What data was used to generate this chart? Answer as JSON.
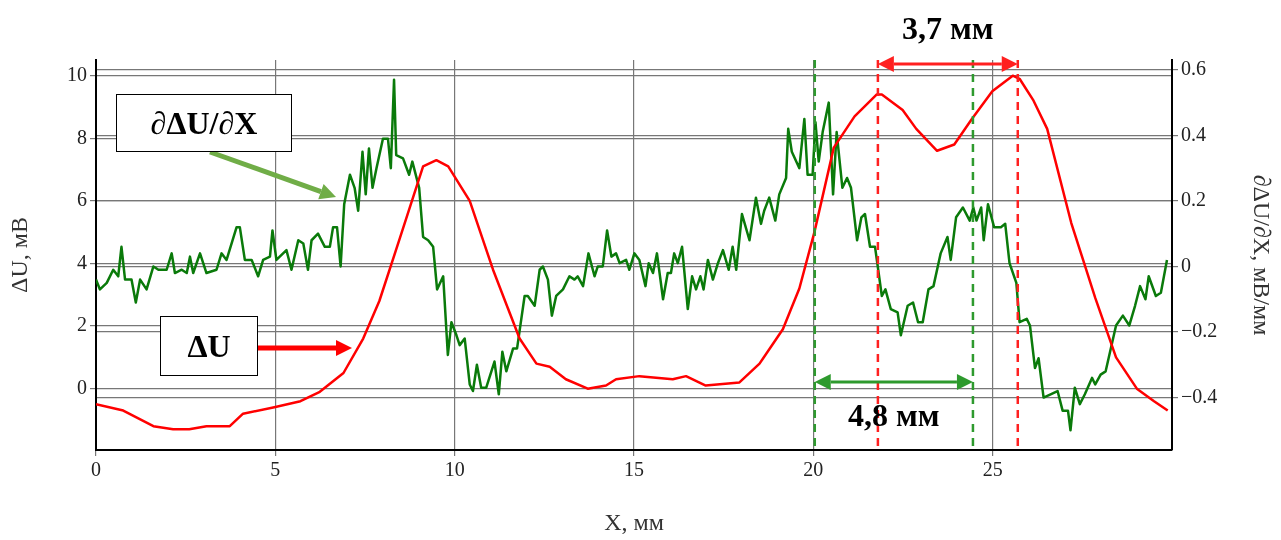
{
  "chart_data": {
    "type": "line",
    "xlabel": "X, мм",
    "ylabel": "ΔU, мВ",
    "y2label": "∂ΔU/∂X, мВ/мм",
    "xlim": [
      0,
      30
    ],
    "xticks": [
      0,
      5,
      10,
      15,
      20,
      25
    ],
    "ylim": [
      -1.96,
      10.5
    ],
    "yticks": [
      0,
      2,
      4,
      6,
      8,
      10
    ],
    "y2lim": [
      -0.56,
      0.63
    ],
    "y2ticks": [
      {
        "value": -0.4,
        "label": "−0.4"
      },
      {
        "value": -0.2,
        "label": "−0.2"
      },
      0,
      0.2,
      0.4,
      0.6
    ],
    "grid": true,
    "series": [
      {
        "name": "ΔU",
        "color": "#ff0000",
        "axis": "y",
        "x": [
          0,
          0.76,
          1.6,
          2.15,
          2.6,
          3.08,
          3.73,
          4.1,
          4.94,
          5.7,
          6.24,
          6.9,
          7.45,
          7.9,
          8.47,
          9.12,
          9.49,
          9.82,
          10.42,
          11.07,
          11.81,
          12.28,
          12.65,
          13.1,
          13.71,
          14.22,
          14.5,
          15.15,
          16.08,
          16.45,
          17.0,
          17.94,
          18.5,
          19.15,
          19.61,
          20.03,
          20.57,
          21.15,
          21.77,
          21.91,
          22.49,
          22.87,
          23.45,
          23.93,
          24.41,
          24.99,
          25.56,
          25.75,
          26.14,
          26.52,
          27.19,
          27.86,
          28.44,
          29.02,
          29.5,
          29.88
        ],
        "values": [
          -0.5,
          -0.7,
          -1.2,
          -1.3,
          -1.3,
          -1.2,
          -1.2,
          -0.8,
          -0.6,
          -0.4,
          -0.1,
          0.5,
          1.6,
          2.8,
          4.8,
          7.1,
          7.3,
          7.1,
          6.0,
          3.8,
          1.6,
          0.8,
          0.7,
          0.3,
          0.0,
          0.1,
          0.3,
          0.4,
          0.3,
          0.4,
          0.1,
          0.2,
          0.8,
          1.9,
          3.2,
          5.0,
          7.7,
          8.7,
          9.4,
          9.4,
          8.9,
          8.3,
          7.6,
          7.8,
          8.6,
          9.5,
          10.0,
          9.9,
          9.2,
          8.3,
          5.3,
          2.9,
          1.0,
          0.0,
          -0.4,
          -0.7
        ]
      },
      {
        "name": "∂ΔU/∂X",
        "color": "#0a7a0a",
        "axis": "y2",
        "x": [
          0,
          0.11,
          0.3,
          0.48,
          0.62,
          0.71,
          0.81,
          0.99,
          1.11,
          1.23,
          1.41,
          1.6,
          1.74,
          1.97,
          2.11,
          2.2,
          2.39,
          2.53,
          2.62,
          2.71,
          2.9,
          3.08,
          3.36,
          3.5,
          3.64,
          3.92,
          4.01,
          4.15,
          4.34,
          4.52,
          4.66,
          4.85,
          4.92,
          5.03,
          5.31,
          5.45,
          5.64,
          5.78,
          5.91,
          6.01,
          6.19,
          6.38,
          6.52,
          6.61,
          6.72,
          6.82,
          6.92,
          7.08,
          7.21,
          7.31,
          7.43,
          7.52,
          7.61,
          7.71,
          7.82,
          8.0,
          8.14,
          8.22,
          8.31,
          8.37,
          8.56,
          8.73,
          8.82,
          9.01,
          9.12,
          9.26,
          9.4,
          9.51,
          9.68,
          9.81,
          9.91,
          10.05,
          10.14,
          10.28,
          10.42,
          10.51,
          10.62,
          10.74,
          10.88,
          11.11,
          11.23,
          11.33,
          11.44,
          11.63,
          11.74,
          11.95,
          12.04,
          12.23,
          12.37,
          12.46,
          12.6,
          12.71,
          12.83,
          13.02,
          13.2,
          13.34,
          13.43,
          13.58,
          13.73,
          13.9,
          13.99,
          14.13,
          14.25,
          14.37,
          14.5,
          14.6,
          14.78,
          14.87,
          15.01,
          15.15,
          15.32,
          15.41,
          15.53,
          15.64,
          15.81,
          15.94,
          16.03,
          16.12,
          16.22,
          16.34,
          16.5,
          16.62,
          16.73,
          16.85,
          16.94,
          17.06,
          17.2,
          17.34,
          17.48,
          17.64,
          17.75,
          17.85,
          18.01,
          18.22,
          18.4,
          18.54,
          18.63,
          18.77,
          18.94,
          19.05,
          19.24,
          19.3,
          19.4,
          19.61,
          19.75,
          19.84,
          19.98,
          20.06,
          20.15,
          20.26,
          20.43,
          20.55,
          20.65,
          20.81,
          20.94,
          21.05,
          21.22,
          21.34,
          21.44,
          21.58,
          21.72,
          21.91,
          22.01,
          22.16,
          22.35,
          22.44,
          22.63,
          22.78,
          22.92,
          23.05,
          23.21,
          23.35,
          23.55,
          23.74,
          23.83,
          23.98,
          24.17,
          24.36,
          24.46,
          24.55,
          24.68,
          24.75,
          24.87,
          25.04,
          25.23,
          25.35,
          25.47,
          25.66,
          25.75,
          25.95,
          26.04,
          26.18,
          26.28,
          26.42,
          26.81,
          26.95,
          27.1,
          27.17,
          27.29,
          27.43,
          27.57,
          27.77,
          27.86,
          28.01,
          28.15,
          28.44,
          28.63,
          28.81,
          28.97,
          29.11,
          29.26,
          29.35,
          29.55,
          29.69,
          29.86
        ],
        "values": [
          -0.04,
          -0.07,
          -0.05,
          -0.01,
          -0.03,
          0.06,
          -0.04,
          -0.04,
          -0.11,
          -0.04,
          -0.07,
          0.0,
          -0.01,
          -0.01,
          0.04,
          -0.02,
          -0.01,
          -0.02,
          0.03,
          -0.02,
          0.04,
          -0.02,
          -0.01,
          0.04,
          0.02,
          0.12,
          0.12,
          0.02,
          0.02,
          -0.03,
          0.02,
          0.03,
          0.11,
          0.02,
          0.05,
          -0.01,
          0.08,
          0.07,
          -0.01,
          0.08,
          0.1,
          0.06,
          0.06,
          0.12,
          0.12,
          0.0,
          0.19,
          0.28,
          0.24,
          0.17,
          0.35,
          0.22,
          0.36,
          0.24,
          0.3,
          0.39,
          0.39,
          0.3,
          0.57,
          0.34,
          0.33,
          0.28,
          0.32,
          0.24,
          0.09,
          0.08,
          0.06,
          -0.07,
          -0.03,
          -0.27,
          -0.17,
          -0.21,
          -0.24,
          -0.22,
          -0.36,
          -0.38,
          -0.3,
          -0.37,
          -0.37,
          -0.29,
          -0.39,
          -0.26,
          -0.32,
          -0.25,
          -0.25,
          -0.09,
          -0.09,
          -0.12,
          -0.01,
          0.0,
          -0.04,
          -0.15,
          -0.09,
          -0.07,
          -0.03,
          -0.04,
          -0.03,
          -0.06,
          0.04,
          -0.03,
          0.0,
          0.0,
          0.11,
          0.03,
          0.04,
          0.01,
          0.02,
          -0.01,
          0.04,
          0.02,
          -0.06,
          0.01,
          -0.02,
          0.04,
          -0.1,
          -0.02,
          -0.02,
          0.04,
          0.01,
          0.06,
          -0.13,
          -0.03,
          -0.07,
          -0.03,
          -0.07,
          0.02,
          -0.04,
          0.01,
          0.05,
          -0.01,
          0.06,
          -0.01,
          0.16,
          0.08,
          0.21,
          0.13,
          0.17,
          0.21,
          0.14,
          0.22,
          0.27,
          0.42,
          0.35,
          0.3,
          0.45,
          0.28,
          0.28,
          0.44,
          0.32,
          0.41,
          0.5,
          0.22,
          0.41,
          0.24,
          0.27,
          0.24,
          0.08,
          0.15,
          0.16,
          0.06,
          0.06,
          -0.09,
          -0.07,
          -0.13,
          -0.14,
          -0.21,
          -0.12,
          -0.11,
          -0.17,
          -0.17,
          -0.07,
          -0.06,
          0.04,
          0.09,
          0.02,
          0.15,
          0.18,
          0.14,
          0.18,
          0.14,
          0.18,
          0.08,
          0.19,
          0.12,
          0.12,
          0.13,
          0.01,
          -0.05,
          -0.17,
          -0.16,
          -0.18,
          -0.31,
          -0.28,
          -0.4,
          -0.38,
          -0.44,
          -0.44,
          -0.5,
          -0.37,
          -0.42,
          -0.39,
          -0.34,
          -0.36,
          -0.33,
          -0.32,
          -0.18,
          -0.15,
          -0.18,
          -0.12,
          -0.06,
          -0.1,
          -0.03,
          -0.09,
          -0.08,
          0.02
        ]
      }
    ],
    "ref_lines": [
      {
        "axis": "x",
        "value": 20.04,
        "color": "#2e9a2e",
        "line_style": "dashed"
      },
      {
        "axis": "x",
        "value": 24.45,
        "color": "#2e9a2e",
        "line_style": "dashed"
      },
      {
        "axis": "x",
        "value": 21.8,
        "color": "#ff2020",
        "line_style": "dashed"
      },
      {
        "axis": "x",
        "value": 25.7,
        "color": "#ff2020",
        "line_style": "dashed"
      }
    ],
    "annotations": [
      "3,7 мм",
      "4,8 мм"
    ]
  }
}
